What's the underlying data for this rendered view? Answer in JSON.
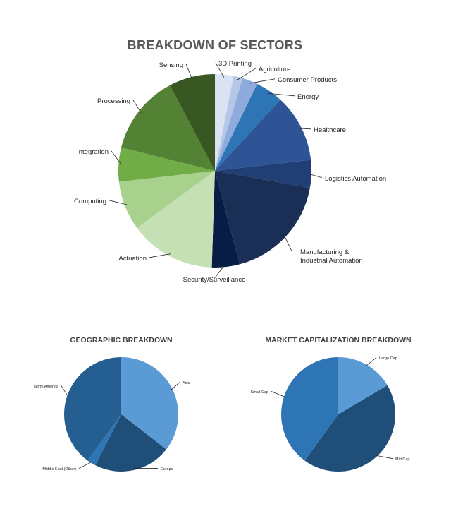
{
  "chart_data": [
    {
      "type": "pie",
      "title": "BREAKDOWN OF SECTORS",
      "slices": [
        {
          "label": "3D Printing",
          "value": 3.0,
          "color": "#dae3f3"
        },
        {
          "label": "Agriculture",
          "value": 1.5,
          "color": "#b4c7e7"
        },
        {
          "label": "Consumer Products",
          "value": 2.5,
          "color": "#8faadc"
        },
        {
          "label": "Energy",
          "value": 4.5,
          "color": "#2e75b6"
        },
        {
          "label": "Healthcare",
          "value": 11.0,
          "color": "#2f5496"
        },
        {
          "label": "Logistics Automation",
          "value": 4.5,
          "color": "#203f75"
        },
        {
          "label": "Manufacturing & Industrial Automation",
          "value": 17.5,
          "color": "#1b2f56"
        },
        {
          "label": "Security/Surveillance",
          "value": 4.5,
          "color": "#081d45"
        },
        {
          "label": "Actuation",
          "value": 14.0,
          "color": "#c5e0b4"
        },
        {
          "label": "Computing",
          "value": 8.0,
          "color": "#a9d18e"
        },
        {
          "label": "Integration",
          "value": 5.5,
          "color": "#70ad47"
        },
        {
          "label": "Processing",
          "value": 13.0,
          "color": "#548235"
        },
        {
          "label": "Sensing",
          "value": 7.5,
          "color": "#385723"
        }
      ]
    },
    {
      "type": "pie",
      "title": "GEOGRAPHIC BREAKDOWN",
      "slices": [
        {
          "label": "Asia",
          "value": 35.5,
          "color": "#5b9bd5"
        },
        {
          "label": "Europe",
          "value": 22.0,
          "color": "#1f4e79"
        },
        {
          "label": "Middle East (Other)",
          "value": 2.5,
          "color": "#2e75b6"
        },
        {
          "label": "North America",
          "value": 40.0,
          "color": "#255e91"
        }
      ]
    },
    {
      "type": "pie",
      "title": "MARKET CAPITALIZATION BREAKDOWN",
      "slices": [
        {
          "label": "Large Cap",
          "value": 16.5,
          "color": "#5b9bd5"
        },
        {
          "label": "Mid Cap",
          "value": 43.5,
          "color": "#1f4e79"
        },
        {
          "label": "Small Cap",
          "value": 40.0,
          "color": "#2e75b6"
        }
      ]
    }
  ]
}
